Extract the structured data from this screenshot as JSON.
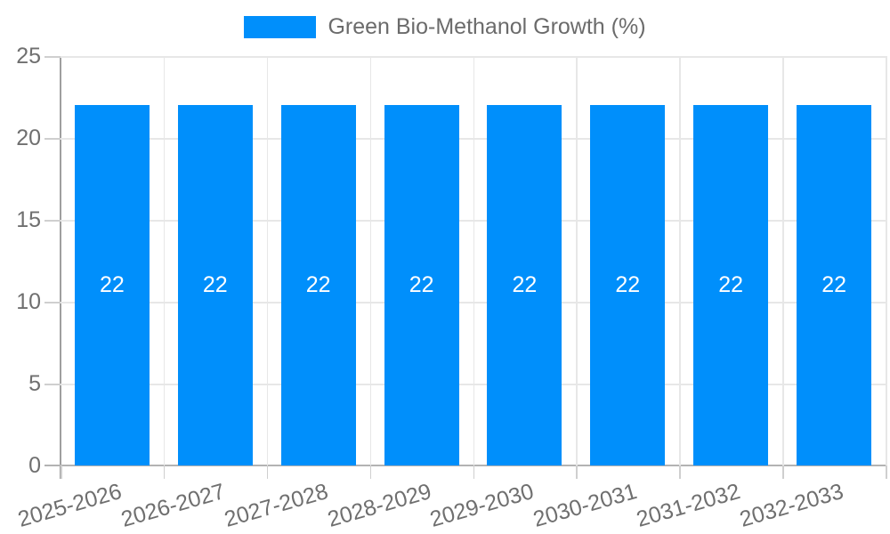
{
  "legend": {
    "label": "Green Bio-Methanol Growth (%)",
    "swatch_color": "#008FFB",
    "position": "top"
  },
  "chart_data": {
    "type": "bar",
    "title": "Green Bio-Methanol Growth (%)",
    "categories": [
      "2025-2026",
      "2026-2027",
      "2027-2028",
      "2028-2029",
      "2029-2030",
      "2030-2031",
      "2031-2032",
      "2032-2033"
    ],
    "series": [
      {
        "name": "Green Bio-Methanol Growth (%)",
        "values": [
          22,
          22,
          22,
          22,
          22,
          22,
          22,
          22
        ]
      }
    ],
    "bar_value_labels": [
      "22",
      "22",
      "22",
      "22",
      "22",
      "22",
      "22",
      "22"
    ],
    "xlabel": "",
    "ylabel": "",
    "ylim": [
      0,
      25
    ],
    "yticks": [
      0,
      5,
      10,
      15,
      20,
      25
    ],
    "grid": true,
    "legend_position": "top",
    "x_label_rotation_deg": -16
  },
  "colors": {
    "bar": "#008FFB",
    "grid": "#e7e7e7",
    "axis_line": "#9f9f9f",
    "baseline": "#b3b3b3",
    "tick": "#cfcfcf",
    "axis_text": "#6f6f6f",
    "legend_text": "#6b6b6b",
    "value_text": "#ffffff",
    "background": "#ffffff"
  }
}
